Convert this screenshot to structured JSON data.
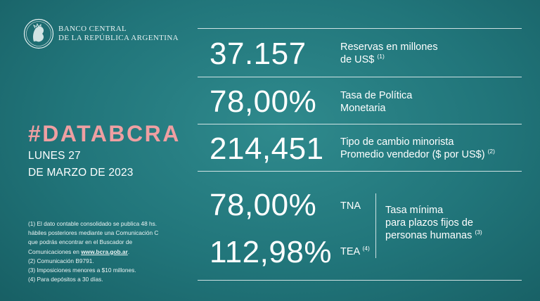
{
  "brand": {
    "line1": "BANCO CENTRAL",
    "line2": "DE LA REPÚBLICA ARGENTINA",
    "seal_icon": "bcra-seal-icon"
  },
  "hashtag": "#DATABCRA",
  "date": {
    "line1": "LUNES 27",
    "line2": "DE MARZO DE 2023"
  },
  "indicators": {
    "reserves": {
      "value": "37.157",
      "label_line1": "Reservas en millones",
      "label_line2": "de US$",
      "note": "(1)"
    },
    "policy_rate": {
      "value": "78,00%",
      "label_line1": "Tasa de Política",
      "label_line2": "Monetaria"
    },
    "exchange_rate": {
      "value": "214,451",
      "label_line1": "Tipo de cambio minorista",
      "label_line2": "Promedio vendedor ($ por US$)",
      "note": "(2)"
    },
    "fixed_term": {
      "tna_value": "78,00%",
      "tna_label": "TNA",
      "tea_value": "112,98%",
      "tea_label": "TEA",
      "tea_note": "(4)",
      "label_line1": "Tasa mínima",
      "label_line2": "para plazos fijos de",
      "label_line3": "personas humanas",
      "note": "(3)"
    }
  },
  "footnotes": {
    "n1_line1": "(1) El dato contable consolidado se publica 48 hs.",
    "n1_line2": "hábiles posteriores mediante una Comunicación C",
    "n1_line3": "que podrás encontrar en el Buscador de",
    "n1_line4_prefix": "Comunicaciones en ",
    "n1_url": "www.bcra.gob.ar",
    "n1_line4_suffix": ".",
    "n2": "(2) Comunicación B9791.",
    "n3": "(3) Imposiciones menores a $10 millones.",
    "n4": "(4) Para depósitos a 30 días."
  },
  "colors": {
    "background": "#21757a",
    "accent": "#ef9fa2",
    "text": "#ffffff"
  }
}
